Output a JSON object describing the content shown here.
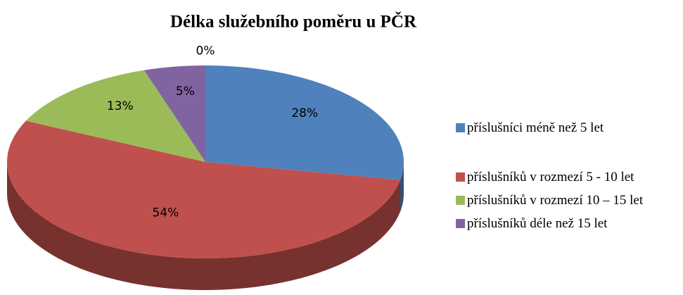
{
  "chart_data": {
    "type": "pie3d",
    "title": "Délka služebního poměru u PČR",
    "categories": [
      "příslušníci méně než 5 let",
      "příslušníků v rozmezí 5 - 10 let",
      "příslušníků v rozmezí 10 – 15 let",
      "příslušníků déle než 15 let",
      null
    ],
    "values": [
      28,
      54,
      13,
      5,
      0
    ],
    "value_labels": [
      "28%",
      "54%",
      "13%",
      "5%",
      "0%"
    ],
    "colors": [
      "#4f81bd",
      "#c0504d",
      "#9bbb59",
      "#8064a2",
      "#4bacc6"
    ],
    "legend": "right"
  }
}
